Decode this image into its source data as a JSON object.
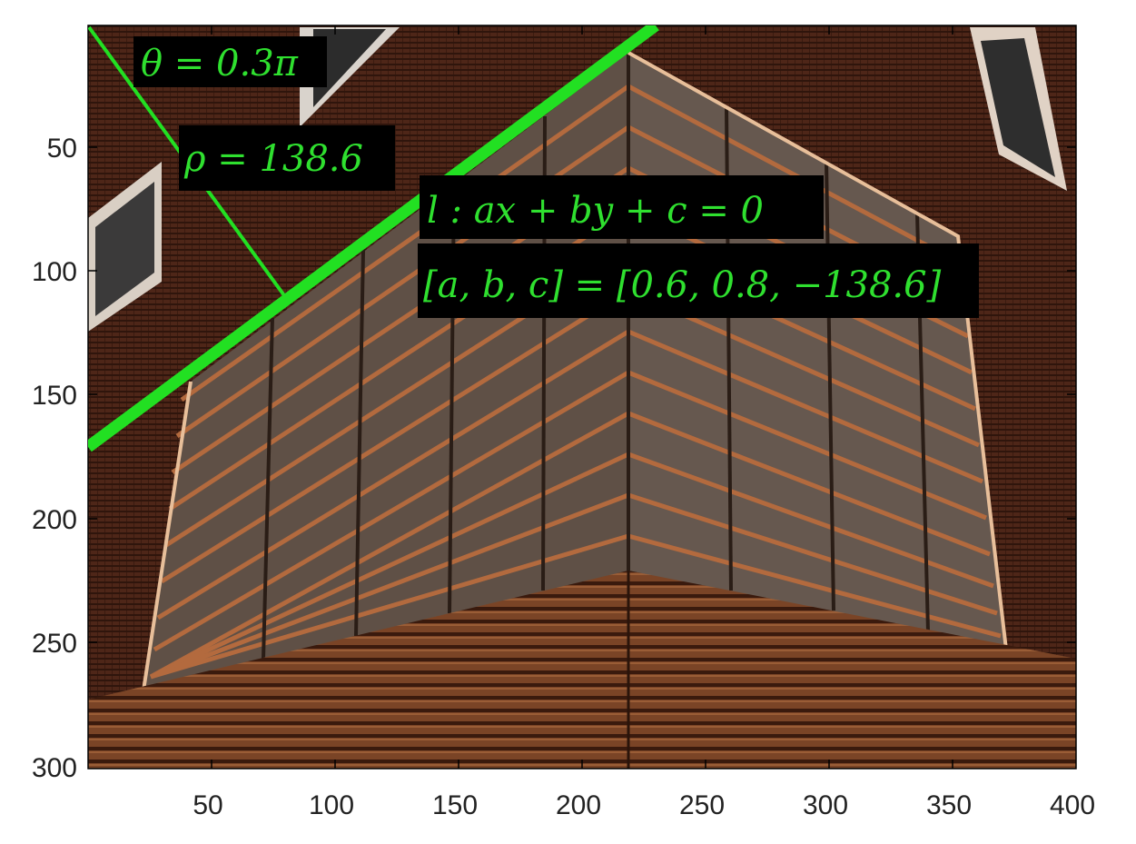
{
  "image": {
    "description_icon": "building-facade-photo",
    "x_range": [
      1,
      400
    ],
    "y_range": [
      1,
      300
    ],
    "y_reversed": true
  },
  "axes": {
    "x_ticks": [
      50,
      100,
      150,
      200,
      250,
      300,
      350,
      400
    ],
    "y_ticks": [
      50,
      100,
      150,
      200,
      250,
      300
    ],
    "x_tick_labels": [
      "50",
      "100",
      "150",
      "200",
      "250",
      "300",
      "350",
      "400"
    ],
    "y_tick_labels": [
      "50",
      "100",
      "150",
      "200",
      "250",
      "300"
    ]
  },
  "annotations": {
    "theta": "θ = 0.3π",
    "rho": "ρ = 138.6",
    "line_eq": "l : ax + by + c = 0",
    "coeffs": "[a, b, c] = [0.6, 0.8, −138.6]"
  },
  "hough_line": {
    "theta_pi": 0.3,
    "rho": 138.6,
    "a": 0.6,
    "b": 0.8,
    "c": -138.6
  },
  "colors": {
    "accent": "#22e022",
    "facade": "#5a2e1c",
    "frame": "#e8bf9a"
  }
}
